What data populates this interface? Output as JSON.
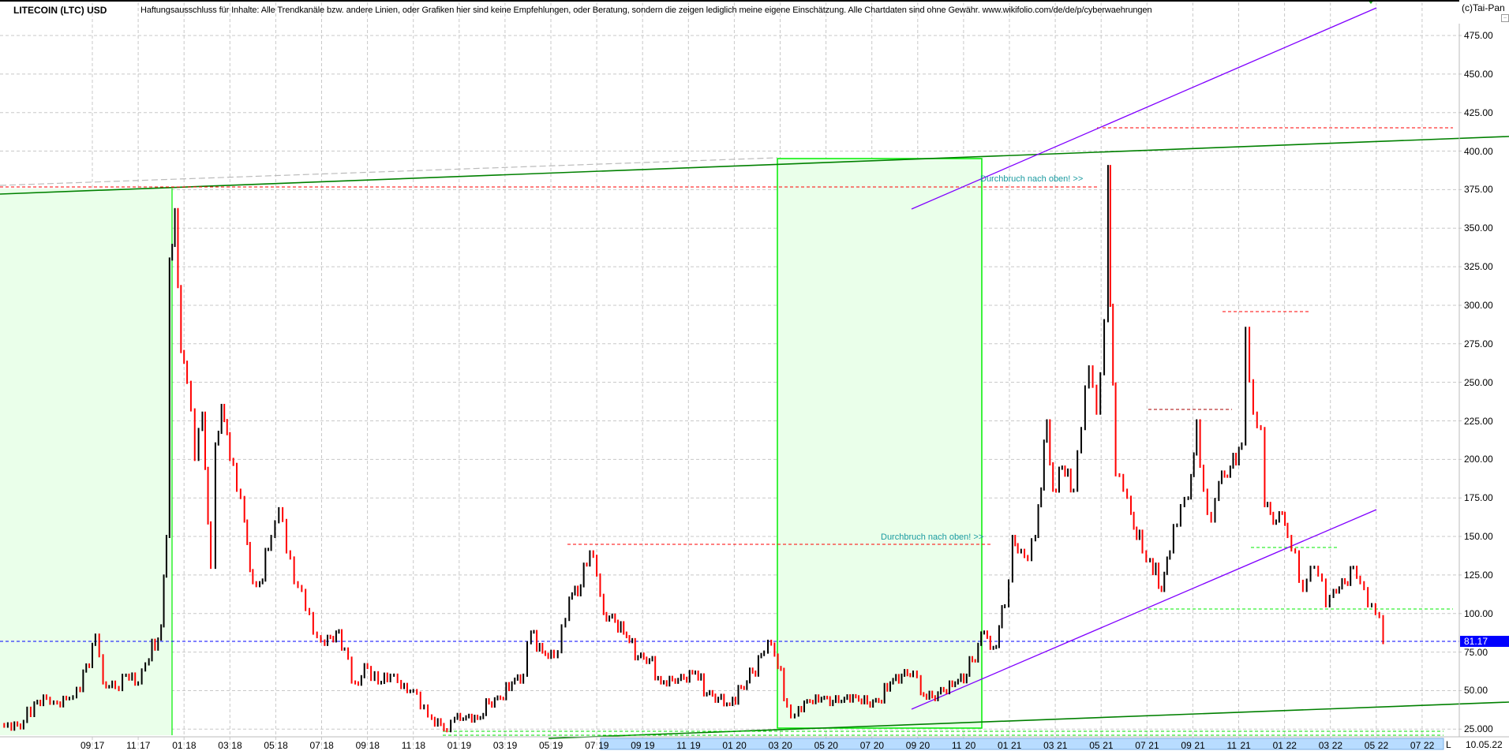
{
  "header": {
    "title": "LITECOIN (LTC) USD",
    "disclaimer": "Haftungsausschluss für Inhalte: Alle Trendkanäle bzw. andere Linien, oder Grafiken hier sind keine Empfehlungen, oder Beratung, sondern die zeigen lediglich meine eigene Einschätzung. Alle Chartdaten sind ohne Gewähr.  www.wikifolio.com/de/de/p/cyberwaehrungen",
    "copyright": "(c)Tai-Pan",
    "collapse_icon": "minus-box-icon"
  },
  "footer": {
    "mode_label": "L",
    "current_date": "10.05.22"
  },
  "colors": {
    "up": "#000000",
    "down": "#ff0000",
    "last_price": "#0000ff",
    "trend_green": "#008000",
    "zone_green": "#00ee00",
    "channel_purple": "#8000ff",
    "note": "#1a9aa0"
  },
  "chart_data": {
    "type": "line",
    "title": "LITECOIN (LTC) USD",
    "ylim": [
      15,
      495
    ],
    "grid": true,
    "y_ticks": [
      "475.00",
      "450.00",
      "425.00",
      "400.00",
      "375.00",
      "350.00",
      "325.00",
      "300.00",
      "275.00",
      "250.00",
      "225.00",
      "200.00",
      "175.00",
      "150.00",
      "125.00",
      "100.00",
      "75.00",
      "50.00",
      "25.000"
    ],
    "x_ticks": [
      {
        "m": "09",
        "y": "17"
      },
      {
        "m": "11",
        "y": "17"
      },
      {
        "m": "01",
        "y": "18"
      },
      {
        "m": "03",
        "y": "18"
      },
      {
        "m": "05",
        "y": "18"
      },
      {
        "m": "07",
        "y": "18"
      },
      {
        "m": "09",
        "y": "18"
      },
      {
        "m": "11",
        "y": "18"
      },
      {
        "m": "01",
        "y": "19"
      },
      {
        "m": "03",
        "y": "19"
      },
      {
        "m": "05",
        "y": "19"
      },
      {
        "m": "07",
        "y": "19"
      },
      {
        "m": "09",
        "y": "19"
      },
      {
        "m": "11",
        "y": "19"
      },
      {
        "m": "01",
        "y": "20"
      },
      {
        "m": "03",
        "y": "20"
      },
      {
        "m": "05",
        "y": "20"
      },
      {
        "m": "07",
        "y": "20"
      },
      {
        "m": "09",
        "y": "20"
      },
      {
        "m": "11",
        "y": "20"
      },
      {
        "m": "01",
        "y": "21"
      },
      {
        "m": "03",
        "y": "21"
      },
      {
        "m": "05",
        "y": "21"
      },
      {
        "m": "07",
        "y": "21"
      },
      {
        "m": "09",
        "y": "21"
      },
      {
        "m": "11",
        "y": "21"
      },
      {
        "m": "01",
        "y": "22"
      },
      {
        "m": "03",
        "y": "22"
      },
      {
        "m": "05",
        "y": "22"
      },
      {
        "m": "07",
        "y": "22"
      }
    ],
    "last_price": "81.17",
    "series": [
      {
        "points": [
          [
            "2017-05-01",
            28
          ],
          [
            "2017-05-15",
            25
          ],
          [
            "2017-06-01",
            30
          ],
          [
            "2017-06-15",
            42
          ],
          [
            "2017-07-01",
            45
          ],
          [
            "2017-07-15",
            42
          ],
          [
            "2017-08-01",
            45
          ],
          [
            "2017-08-15",
            50
          ],
          [
            "2017-09-01",
            80
          ],
          [
            "2017-09-05",
            86
          ],
          [
            "2017-09-15",
            55
          ],
          [
            "2017-10-01",
            52
          ],
          [
            "2017-10-15",
            60
          ],
          [
            "2017-11-01",
            55
          ],
          [
            "2017-11-15",
            70
          ],
          [
            "2017-12-01",
            92
          ],
          [
            "2017-12-08",
            150
          ],
          [
            "2017-12-12",
            330
          ],
          [
            "2017-12-19",
            362
          ],
          [
            "2017-12-27",
            270
          ],
          [
            "2018-01-05",
            250
          ],
          [
            "2018-01-15",
            200
          ],
          [
            "2018-01-25",
            230
          ],
          [
            "2018-02-06",
            130
          ],
          [
            "2018-02-12",
            210
          ],
          [
            "2018-02-20",
            235
          ],
          [
            "2018-03-01",
            200
          ],
          [
            "2018-03-10",
            180
          ],
          [
            "2018-03-20",
            160
          ],
          [
            "2018-03-31",
            120
          ],
          [
            "2018-04-10",
            120
          ],
          [
            "2018-04-25",
            150
          ],
          [
            "2018-05-05",
            168
          ],
          [
            "2018-05-15",
            140
          ],
          [
            "2018-05-25",
            120
          ],
          [
            "2018-06-05",
            115
          ],
          [
            "2018-06-15",
            100
          ],
          [
            "2018-06-25",
            85
          ],
          [
            "2018-07-05",
            80
          ],
          [
            "2018-07-20",
            88
          ],
          [
            "2018-08-01",
            77
          ],
          [
            "2018-08-15",
            55
          ],
          [
            "2018-09-01",
            65
          ],
          [
            "2018-09-15",
            55
          ],
          [
            "2018-10-01",
            60
          ],
          [
            "2018-10-15",
            52
          ],
          [
            "2018-11-01",
            50
          ],
          [
            "2018-11-15",
            40
          ],
          [
            "2018-11-25",
            32
          ],
          [
            "2018-12-07",
            28
          ],
          [
            "2018-12-15",
            24
          ],
          [
            "2018-12-25",
            32
          ],
          [
            "2019-01-10",
            33
          ],
          [
            "2019-01-25",
            32
          ],
          [
            "2019-02-10",
            42
          ],
          [
            "2019-02-25",
            45
          ],
          [
            "2019-03-10",
            55
          ],
          [
            "2019-03-25",
            60
          ],
          [
            "2019-04-05",
            88
          ],
          [
            "2019-04-20",
            75
          ],
          [
            "2019-05-05",
            72
          ],
          [
            "2019-05-15",
            92
          ],
          [
            "2019-05-25",
            110
          ],
          [
            "2019-06-10",
            118
          ],
          [
            "2019-06-22",
            140
          ],
          [
            "2019-07-01",
            125
          ],
          [
            "2019-07-10",
            100
          ],
          [
            "2019-07-25",
            95
          ],
          [
            "2019-08-10",
            85
          ],
          [
            "2019-08-25",
            72
          ],
          [
            "2019-09-10",
            70
          ],
          [
            "2019-09-25",
            55
          ],
          [
            "2019-10-10",
            57
          ],
          [
            "2019-10-25",
            58
          ],
          [
            "2019-11-10",
            62
          ],
          [
            "2019-11-25",
            48
          ],
          [
            "2019-12-10",
            45
          ],
          [
            "2019-12-25",
            41
          ],
          [
            "2020-01-10",
            52
          ],
          [
            "2020-01-25",
            62
          ],
          [
            "2020-02-10",
            75
          ],
          [
            "2020-02-15",
            82
          ],
          [
            "2020-02-28",
            65
          ],
          [
            "2020-03-10",
            40
          ],
          [
            "2020-03-15",
            33
          ],
          [
            "2020-03-25",
            39
          ],
          [
            "2020-04-10",
            43
          ],
          [
            "2020-04-25",
            45
          ],
          [
            "2020-05-10",
            43
          ],
          [
            "2020-05-25",
            45
          ],
          [
            "2020-06-10",
            46
          ],
          [
            "2020-06-25",
            42
          ],
          [
            "2020-07-10",
            43
          ],
          [
            "2020-07-25",
            55
          ],
          [
            "2020-08-10",
            60
          ],
          [
            "2020-08-25",
            62
          ],
          [
            "2020-09-05",
            48
          ],
          [
            "2020-09-20",
            46
          ],
          [
            "2020-10-05",
            50
          ],
          [
            "2020-10-20",
            55
          ],
          [
            "2020-11-05",
            60
          ],
          [
            "2020-11-20",
            80
          ],
          [
            "2020-11-28",
            88
          ],
          [
            "2020-12-10",
            78
          ],
          [
            "2020-12-25",
            105
          ],
          [
            "2021-01-05",
            150
          ],
          [
            "2021-01-12",
            140
          ],
          [
            "2021-01-25",
            135
          ],
          [
            "2021-02-05",
            150
          ],
          [
            "2021-02-20",
            225
          ],
          [
            "2021-02-28",
            180
          ],
          [
            "2021-03-10",
            195
          ],
          [
            "2021-03-25",
            180
          ],
          [
            "2021-04-05",
            220
          ],
          [
            "2021-04-15",
            260
          ],
          [
            "2021-04-25",
            230
          ],
          [
            "2021-05-05",
            290
          ],
          [
            "2021-05-10",
            390
          ],
          [
            "2021-05-13",
            300
          ],
          [
            "2021-05-20",
            190
          ],
          [
            "2021-05-30",
            180
          ],
          [
            "2021-06-10",
            165
          ],
          [
            "2021-06-25",
            140
          ],
          [
            "2021-07-05",
            135
          ],
          [
            "2021-07-20",
            115
          ],
          [
            "2021-08-01",
            140
          ],
          [
            "2021-08-15",
            170
          ],
          [
            "2021-08-25",
            175
          ],
          [
            "2021-09-06",
            225
          ],
          [
            "2021-09-15",
            180
          ],
          [
            "2021-09-25",
            160
          ],
          [
            "2021-10-05",
            185
          ],
          [
            "2021-10-20",
            195
          ],
          [
            "2021-11-05",
            210
          ],
          [
            "2021-11-10",
            285
          ],
          [
            "2021-11-20",
            230
          ],
          [
            "2021-11-30",
            220
          ],
          [
            "2021-12-05",
            170
          ],
          [
            "2021-12-20",
            160
          ],
          [
            "2021-12-28",
            165
          ],
          [
            "2022-01-05",
            150
          ],
          [
            "2022-01-15",
            140
          ],
          [
            "2022-01-25",
            115
          ],
          [
            "2022-02-05",
            130
          ],
          [
            "2022-02-15",
            125
          ],
          [
            "2022-02-25",
            105
          ],
          [
            "2022-03-05",
            115
          ],
          [
            "2022-03-20",
            120
          ],
          [
            "2022-03-31",
            130
          ],
          [
            "2022-04-10",
            120
          ],
          [
            "2022-04-20",
            105
          ],
          [
            "2022-04-30",
            100
          ],
          [
            "2022-05-05",
            98
          ],
          [
            "2022-05-10",
            81.17
          ]
        ]
      }
    ],
    "annotations": {
      "notes": [
        "Durchbruch nach oben! >>",
        "Durchbruch nach oben! >>"
      ],
      "resistance_levels": [
        376,
        415,
        145,
        296,
        233
      ],
      "support_levels": [
        102,
        143
      ]
    }
  }
}
